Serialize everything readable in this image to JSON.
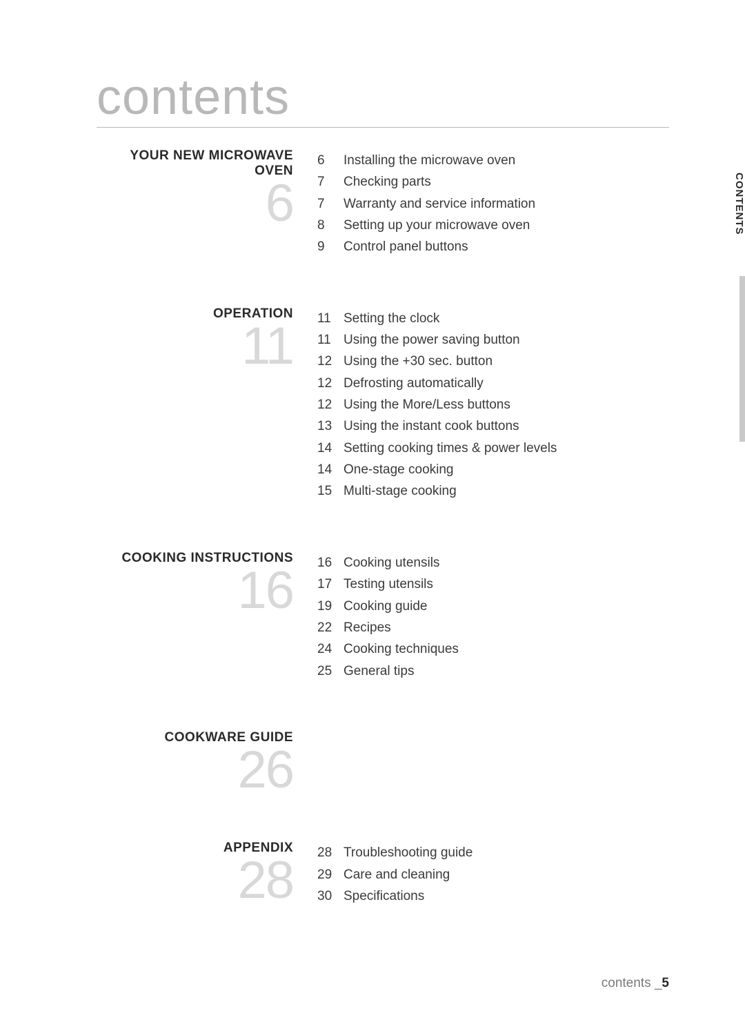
{
  "page": {
    "title": "contents",
    "side_tab": "CONTENTS",
    "footer_label": "contents _",
    "footer_page": "5",
    "background_color": "#ffffff",
    "title_color": "#b8b8b8",
    "title_fontsize": 72,
    "section_number_color": "#d8d8d8",
    "section_number_fontsize": 76,
    "heading_fontsize": 19,
    "body_fontsize": 19,
    "text_color": "#3a3a3a",
    "sidebar_color": "#c9c9c9"
  },
  "sections": [
    {
      "heading": "YOUR NEW MICROWAVE OVEN",
      "number": "6",
      "items": [
        {
          "page": "6",
          "label": "Installing the microwave oven"
        },
        {
          "page": "7",
          "label": "Checking parts"
        },
        {
          "page": "7",
          "label": "Warranty and service information"
        },
        {
          "page": "8",
          "label": "Setting up your microwave oven"
        },
        {
          "page": "9",
          "label": "Control panel buttons"
        }
      ]
    },
    {
      "heading": "OPERATION",
      "number": "11",
      "items": [
        {
          "page": "11",
          "label": "Setting the clock"
        },
        {
          "page": "11",
          "label": "Using the power saving button"
        },
        {
          "page": "12",
          "label": "Using the +30 sec. button"
        },
        {
          "page": "12",
          "label": "Defrosting automatically"
        },
        {
          "page": "12",
          "label": "Using the More/Less buttons"
        },
        {
          "page": "13",
          "label": "Using the instant cook buttons"
        },
        {
          "page": "14",
          "label": "Setting cooking times & power levels"
        },
        {
          "page": "14",
          "label": "One-stage cooking"
        },
        {
          "page": "15",
          "label": "Multi-stage cooking"
        }
      ]
    },
    {
      "heading": "COOKING INSTRUCTIONS",
      "number": "16",
      "items": [
        {
          "page": "16",
          "label": "Cooking utensils"
        },
        {
          "page": "17",
          "label": "Testing utensils"
        },
        {
          "page": "19",
          "label": "Cooking guide"
        },
        {
          "page": "22",
          "label": "Recipes"
        },
        {
          "page": "24",
          "label": "Cooking techniques"
        },
        {
          "page": "25",
          "label": "General tips"
        }
      ]
    },
    {
      "heading": "COOKWARE GUIDE",
      "number": "26",
      "items": []
    },
    {
      "heading": "APPENDIX",
      "number": "28",
      "items": [
        {
          "page": "28",
          "label": "Troubleshooting guide"
        },
        {
          "page": "29",
          "label": "Care and cleaning"
        },
        {
          "page": "30",
          "label": "Specifications"
        }
      ]
    }
  ]
}
